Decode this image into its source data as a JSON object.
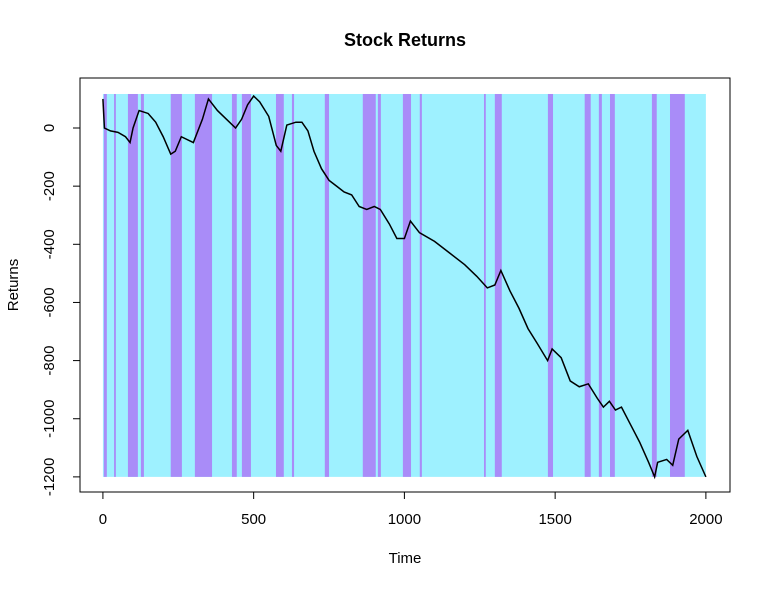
{
  "chart_data": {
    "type": "line",
    "title": "Stock Returns",
    "x_label": "Time",
    "y_label": "Returns",
    "x": [
      0,
      5,
      25,
      50,
      75,
      90,
      100,
      120,
      150,
      175,
      200,
      225,
      240,
      260,
      300,
      330,
      350,
      380,
      410,
      440,
      460,
      480,
      500,
      520,
      550,
      575,
      590,
      610,
      640,
      660,
      680,
      700,
      725,
      750,
      775,
      800,
      825,
      850,
      875,
      900,
      920,
      950,
      975,
      1000,
      1020,
      1050,
      1100,
      1150,
      1200,
      1240,
      1275,
      1300,
      1320,
      1350,
      1380,
      1410,
      1440,
      1475,
      1490,
      1520,
      1550,
      1580,
      1610,
      1640,
      1660,
      1680,
      1700,
      1720,
      1750,
      1780,
      1810,
      1830,
      1840,
      1870,
      1890,
      1910,
      1940,
      1970,
      2000
    ],
    "values": [
      100,
      0,
      -10,
      -15,
      -30,
      -50,
      0,
      60,
      50,
      20,
      -30,
      -90,
      -80,
      -30,
      -50,
      30,
      100,
      60,
      30,
      0,
      30,
      80,
      110,
      90,
      40,
      -60,
      -80,
      10,
      20,
      20,
      -10,
      -80,
      -140,
      -180,
      -200,
      -220,
      -230,
      -270,
      -280,
      -270,
      -280,
      -330,
      -380,
      -380,
      -320,
      -360,
      -390,
      -430,
      -470,
      -510,
      -550,
      -540,
      -490,
      -560,
      -620,
      -690,
      -740,
      -800,
      -760,
      -790,
      -870,
      -890,
      -880,
      -930,
      -960,
      -940,
      -970,
      -960,
      -1020,
      -1080,
      -1150,
      -1200,
      -1150,
      -1140,
      -1160,
      -1070,
      -1040,
      -1130,
      -1200
    ],
    "color": "#000000",
    "background_region": {
      "start": 0,
      "end": 2000,
      "top": 117,
      "bottom": -1200,
      "color": "#9ef1ff"
    },
    "shaded_color": "#a98cf8",
    "shaded_regions": [
      [
        3,
        13
      ],
      [
        37,
        43
      ],
      [
        83,
        116
      ],
      [
        126,
        136
      ],
      [
        225,
        262
      ],
      [
        305,
        362
      ],
      [
        428,
        444
      ],
      [
        461,
        491
      ],
      [
        574,
        600
      ],
      [
        627,
        634
      ],
      [
        736,
        750
      ],
      [
        862,
        905
      ],
      [
        912,
        922
      ],
      [
        995,
        1022
      ],
      [
        1051,
        1058
      ],
      [
        1264,
        1270
      ],
      [
        1300,
        1323
      ],
      [
        1476,
        1493
      ],
      [
        1598,
        1618
      ],
      [
        1645,
        1655
      ],
      [
        1682,
        1698
      ],
      [
        1821,
        1837
      ],
      [
        1881,
        1930
      ]
    ],
    "xlim": [
      -76,
      2080
    ],
    "ylim": [
      -1252,
      172
    ],
    "xticks": [
      0,
      500,
      1000,
      1500,
      2000
    ],
    "yticks": [
      -1200,
      -1000,
      -800,
      -600,
      -400,
      -200,
      0
    ]
  }
}
